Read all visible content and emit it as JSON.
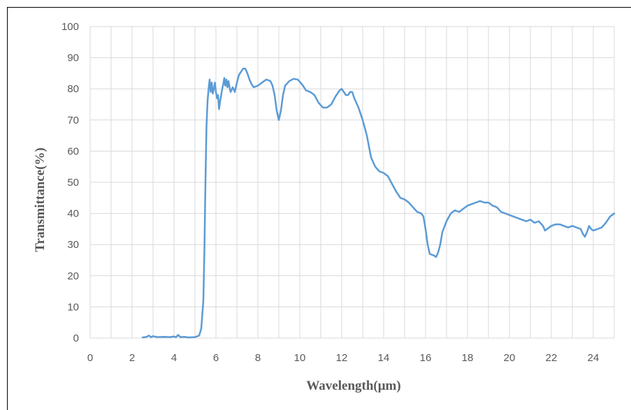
{
  "chart_data": {
    "type": "line",
    "title": "",
    "xlabel": "Wavelength(μm)",
    "ylabel": "Transmittance(%)",
    "xlim": [
      0,
      25
    ],
    "ylim": [
      0,
      100
    ],
    "xticks": [
      0,
      2,
      4,
      6,
      8,
      10,
      12,
      14,
      16,
      18,
      20,
      22,
      24
    ],
    "yticks": [
      0,
      10,
      20,
      30,
      40,
      50,
      60,
      70,
      80,
      90,
      100
    ],
    "grid": true,
    "legend": "none",
    "line_color": "#5b9bd5",
    "series": [
      {
        "values": [
          [
            2.5,
            0.2
          ],
          [
            2.7,
            0.4
          ],
          [
            2.8,
            0.8
          ],
          [
            2.9,
            0.3
          ],
          [
            3.0,
            0.6
          ],
          [
            3.2,
            0.3
          ],
          [
            3.5,
            0.4
          ],
          [
            3.8,
            0.3
          ],
          [
            4.0,
            0.5
          ],
          [
            4.1,
            0.3
          ],
          [
            4.2,
            1.0
          ],
          [
            4.3,
            0.3
          ],
          [
            4.5,
            0.4
          ],
          [
            4.7,
            0.2
          ],
          [
            5.0,
            0.3
          ],
          [
            5.2,
            0.8
          ],
          [
            5.3,
            3.0
          ],
          [
            5.4,
            12.0
          ],
          [
            5.45,
            28.0
          ],
          [
            5.5,
            50.0
          ],
          [
            5.55,
            68.0
          ],
          [
            5.6,
            76.0
          ],
          [
            5.65,
            80.0
          ],
          [
            5.7,
            83.0
          ],
          [
            5.75,
            79.0
          ],
          [
            5.8,
            82.0
          ],
          [
            5.85,
            78.5
          ],
          [
            5.9,
            80.0
          ],
          [
            5.95,
            82.0
          ],
          [
            6.0,
            79.0
          ],
          [
            6.05,
            77.0
          ],
          [
            6.1,
            78.0
          ],
          [
            6.15,
            73.5
          ],
          [
            6.2,
            76.0
          ],
          [
            6.25,
            78.0
          ],
          [
            6.3,
            80.0
          ],
          [
            6.35,
            81.5
          ],
          [
            6.4,
            83.5
          ],
          [
            6.45,
            81.0
          ],
          [
            6.5,
            83.0
          ],
          [
            6.55,
            80.5
          ],
          [
            6.6,
            82.5
          ],
          [
            6.65,
            80.5
          ],
          [
            6.7,
            79.0
          ],
          [
            6.8,
            80.5
          ],
          [
            6.9,
            79.0
          ],
          [
            7.0,
            82.0
          ],
          [
            7.1,
            84.5
          ],
          [
            7.2,
            85.5
          ],
          [
            7.3,
            86.5
          ],
          [
            7.4,
            86.5
          ],
          [
            7.5,
            85.0
          ],
          [
            7.6,
            83.0
          ],
          [
            7.7,
            81.5
          ],
          [
            7.8,
            80.5
          ],
          [
            8.0,
            81.0
          ],
          [
            8.2,
            82.0
          ],
          [
            8.4,
            83.0
          ],
          [
            8.6,
            82.5
          ],
          [
            8.7,
            81.0
          ],
          [
            8.8,
            78.0
          ],
          [
            8.9,
            73.0
          ],
          [
            9.0,
            70.0
          ],
          [
            9.1,
            73.0
          ],
          [
            9.2,
            78.0
          ],
          [
            9.3,
            81.0
          ],
          [
            9.5,
            82.5
          ],
          [
            9.7,
            83.2
          ],
          [
            9.9,
            83.0
          ],
          [
            10.1,
            81.5
          ],
          [
            10.3,
            79.5
          ],
          [
            10.5,
            79.0
          ],
          [
            10.7,
            78.0
          ],
          [
            10.9,
            75.5
          ],
          [
            11.1,
            74.0
          ],
          [
            11.3,
            74.0
          ],
          [
            11.5,
            75.0
          ],
          [
            11.7,
            77.5
          ],
          [
            11.9,
            79.5
          ],
          [
            12.0,
            80.0
          ],
          [
            12.1,
            79.0
          ],
          [
            12.2,
            78.0
          ],
          [
            12.3,
            78.0
          ],
          [
            12.4,
            79.0
          ],
          [
            12.5,
            79.0
          ],
          [
            12.6,
            77.0
          ],
          [
            12.8,
            74.0
          ],
          [
            13.0,
            70.0
          ],
          [
            13.2,
            65.0
          ],
          [
            13.4,
            58.0
          ],
          [
            13.6,
            55.0
          ],
          [
            13.8,
            53.5
          ],
          [
            14.0,
            53.0
          ],
          [
            14.2,
            52.0
          ],
          [
            14.4,
            49.5
          ],
          [
            14.6,
            47.0
          ],
          [
            14.8,
            45.0
          ],
          [
            15.0,
            44.5
          ],
          [
            15.2,
            43.5
          ],
          [
            15.4,
            42.0
          ],
          [
            15.6,
            40.5
          ],
          [
            15.8,
            40.0
          ],
          [
            15.9,
            39.0
          ],
          [
            16.0,
            35.0
          ],
          [
            16.1,
            30.0
          ],
          [
            16.2,
            27.0
          ],
          [
            16.4,
            26.5
          ],
          [
            16.5,
            26.0
          ],
          [
            16.6,
            27.5
          ],
          [
            16.7,
            30.0
          ],
          [
            16.8,
            34.0
          ],
          [
            17.0,
            37.5
          ],
          [
            17.2,
            40.0
          ],
          [
            17.4,
            41.0
          ],
          [
            17.6,
            40.5
          ],
          [
            17.8,
            41.5
          ],
          [
            18.0,
            42.5
          ],
          [
            18.2,
            43.0
          ],
          [
            18.4,
            43.5
          ],
          [
            18.6,
            44.0
          ],
          [
            18.8,
            43.5
          ],
          [
            19.0,
            43.5
          ],
          [
            19.2,
            42.5
          ],
          [
            19.4,
            42.0
          ],
          [
            19.6,
            40.5
          ],
          [
            19.8,
            40.0
          ],
          [
            20.0,
            39.5
          ],
          [
            20.2,
            39.0
          ],
          [
            20.4,
            38.5
          ],
          [
            20.6,
            38.0
          ],
          [
            20.8,
            37.5
          ],
          [
            21.0,
            38.0
          ],
          [
            21.2,
            37.0
          ],
          [
            21.4,
            37.5
          ],
          [
            21.6,
            36.0
          ],
          [
            21.7,
            34.5
          ],
          [
            21.8,
            35.0
          ],
          [
            22.0,
            36.0
          ],
          [
            22.2,
            36.5
          ],
          [
            22.4,
            36.5
          ],
          [
            22.6,
            36.0
          ],
          [
            22.8,
            35.5
          ],
          [
            23.0,
            36.0
          ],
          [
            23.2,
            35.5
          ],
          [
            23.4,
            35.0
          ],
          [
            23.5,
            33.5
          ],
          [
            23.6,
            32.5
          ],
          [
            23.7,
            34.0
          ],
          [
            23.8,
            36.0
          ],
          [
            23.9,
            35.0
          ],
          [
            24.0,
            34.5
          ],
          [
            24.2,
            35.0
          ],
          [
            24.4,
            35.5
          ],
          [
            24.6,
            37.0
          ],
          [
            24.8,
            39.0
          ],
          [
            25.0,
            40.0
          ]
        ]
      }
    ]
  }
}
